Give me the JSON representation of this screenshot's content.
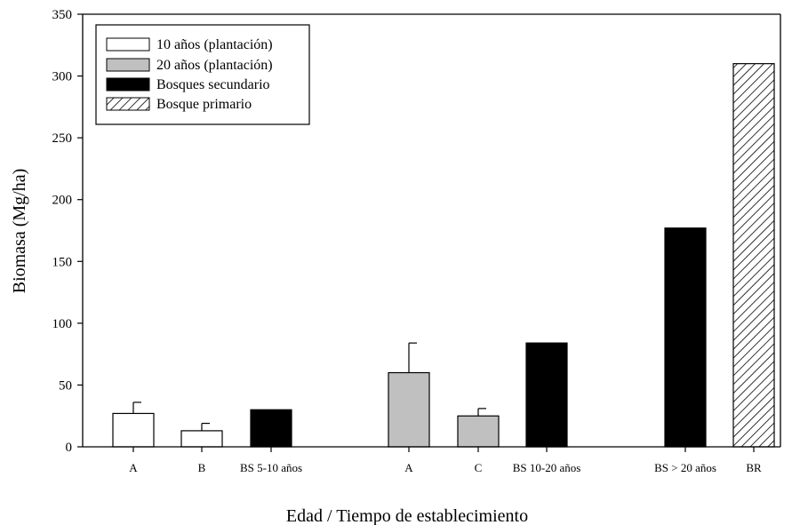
{
  "chart_data": {
    "type": "bar",
    "title": "",
    "xlabel": "Edad / Tiempo de establecimiento",
    "ylabel": "Biomasa (Mg/ha)",
    "ylim": [
      0,
      350
    ],
    "yticks": [
      0,
      50,
      100,
      150,
      200,
      250,
      300,
      350
    ],
    "grid": false,
    "legend_position": "top-left",
    "series": [
      {
        "name": "10 años (plantación)",
        "fill": "#ffffff",
        "pattern": "solid"
      },
      {
        "name": "20 años  (plantación)",
        "fill": "#c0c0c0",
        "pattern": "solid"
      },
      {
        "name": "Bosques secundario",
        "fill": "#000000",
        "pattern": "solid"
      },
      {
        "name": "Bosque primario",
        "fill": "#ffffff",
        "pattern": "hatch"
      }
    ],
    "bars": [
      {
        "category": "A",
        "value": 27,
        "error": 9,
        "series": 0
      },
      {
        "category": "B",
        "value": 13,
        "error": 6,
        "series": 0
      },
      {
        "category": "BS 5-10 años",
        "value": 30,
        "error": null,
        "series": 2
      },
      {
        "category": "A",
        "value": 60,
        "error": 24,
        "series": 1
      },
      {
        "category": "C",
        "value": 25,
        "error": 6,
        "series": 1
      },
      {
        "category": "BS 10-20 años",
        "value": 84,
        "error": null,
        "series": 2
      },
      {
        "category": "BS > 20 años",
        "value": 177,
        "error": null,
        "series": 2
      },
      {
        "category": "BR",
        "value": 310,
        "error": null,
        "series": 3
      }
    ]
  }
}
